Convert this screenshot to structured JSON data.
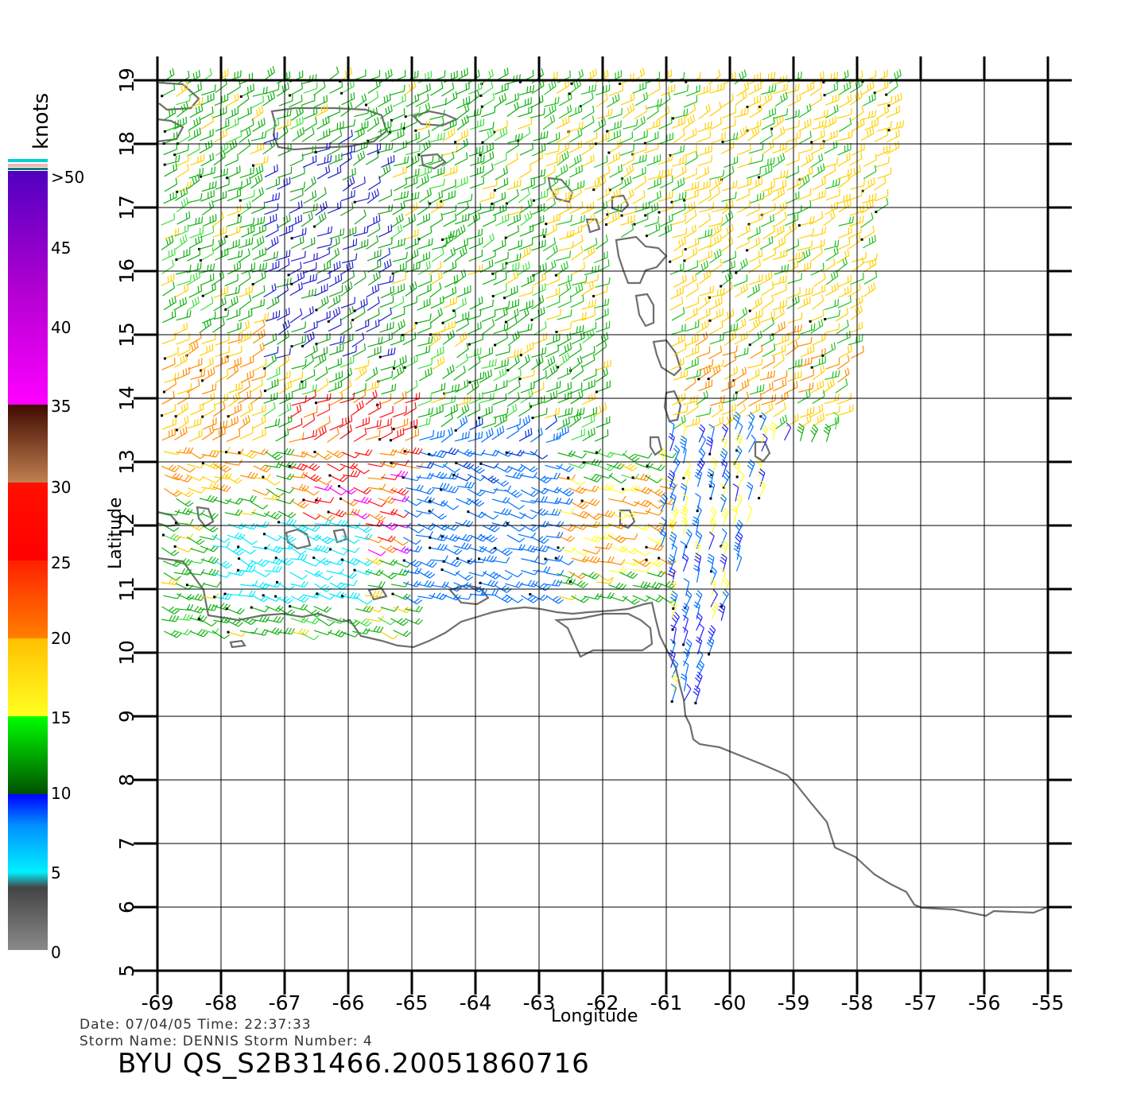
{
  "header": {
    "date_line": "Date: 07/04/05   Time: 22:37:33",
    "storm_line": "Storm Name: DENNIS   Storm Number: 4",
    "file_title": "BYU QS_S2B31466.20051860716"
  },
  "axes": {
    "xlabel": "Longitude",
    "ylabel": "Latitude",
    "x_ticks": [
      "-69",
      "-68",
      "-67",
      "-66",
      "-65",
      "-64",
      "-63",
      "-62",
      "-61",
      "-60",
      "-59",
      "-58",
      "-57",
      "-56",
      "-55"
    ],
    "y_ticks": [
      "5",
      "6",
      "7",
      "8",
      "9",
      "10",
      "11",
      "12",
      "13",
      "14",
      "15",
      "16",
      "17",
      "18",
      "19"
    ],
    "xlim": [
      -69,
      -55
    ],
    "ylim": [
      5,
      19
    ]
  },
  "legend": {
    "unit": "knots",
    "labels": [
      "0",
      "5",
      "10",
      "15",
      "20",
      "25",
      "30",
      "35",
      "40",
      "45",
      ">50"
    ],
    "colors": {
      "c0": "#777777",
      "c5": "#222222",
      "c10": "#00eaff",
      "c15": "#0070ff",
      "c20": "#006400",
      "c25": "#ffff20",
      "c30": "#ff8c00",
      "c35": "#ff1010",
      "c40": "#c07050",
      "c45": "#ff00ff",
      "c50": "#4a00c0"
    }
  },
  "colors": {
    "coast": "#6e6e6e",
    "grid": "#000000"
  }
}
